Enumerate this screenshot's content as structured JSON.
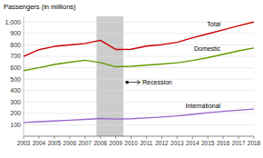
{
  "chart_data": {
    "type": "line",
    "y_label": "Passengers (in millions)",
    "x": [
      2003,
      2004,
      2005,
      2006,
      2007,
      2008,
      2009,
      2010,
      2011,
      2012,
      2013,
      2014,
      2015,
      2016,
      2017,
      2018
    ],
    "series": [
      {
        "name": "Total",
        "color": "#cc0000",
        "values": [
          700,
          758,
          787,
          800,
          812,
          840,
          760,
          762,
          790,
          802,
          822,
          862,
          897,
          932,
          967,
          1000
        ]
      },
      {
        "name": "Domestic",
        "color": "#669900",
        "values": [
          575,
          600,
          628,
          648,
          665,
          645,
          608,
          612,
          622,
          632,
          643,
          663,
          688,
          718,
          748,
          773
        ]
      },
      {
        "name": "International",
        "color": "#9966cc",
        "values": [
          120,
          127,
          133,
          140,
          147,
          155,
          150,
          153,
          160,
          168,
          178,
          191,
          206,
          218,
          228,
          238
        ]
      }
    ],
    "shaded_range": {
      "x": [
        2007.75,
        2009.5
      ],
      "label": "Recession",
      "color": "#cccccc"
    },
    "xlim": [
      2003,
      2018
    ],
    "xticks": [
      2003,
      2004,
      2005,
      2006,
      2007,
      2008,
      2009,
      2010,
      2011,
      2012,
      2013,
      2014,
      2015,
      2016,
      2017,
      2018
    ],
    "ylim": [
      0,
      1050
    ],
    "yticks": [
      100,
      200,
      300,
      400,
      500,
      600,
      700,
      800,
      900,
      {
        "value": 1000,
        "label": "1,000"
      }
    ],
    "grid": true
  }
}
